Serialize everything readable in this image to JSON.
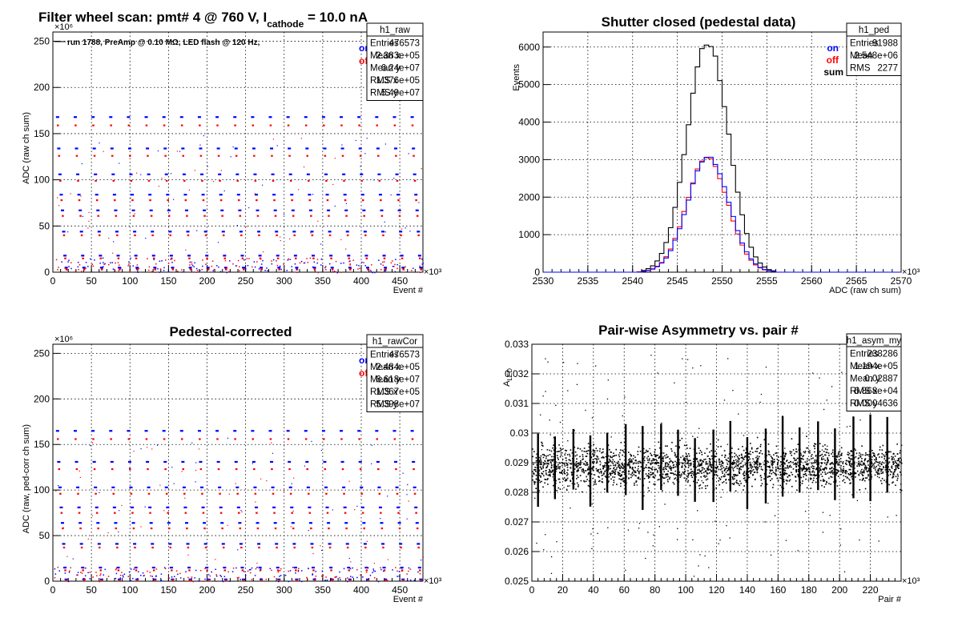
{
  "chart_data": [
    {
      "type": "scatter",
      "title_main": "Filter wheel scan: pmt#   4 @   760 V, I",
      "title_sub": "cathode",
      "title_tail": " = 10.0 nA",
      "xlabel": "Event #",
      "ylabel": "ADC (raw ch sum)",
      "x_multiplier": "×10³",
      "y_multiplier": "×10⁶",
      "xlim": [
        0,
        480
      ],
      "ylim": [
        0,
        260
      ],
      "x_ticks": [
        0,
        50,
        100,
        150,
        200,
        250,
        300,
        350,
        400,
        450
      ],
      "y_ticks": [
        0,
        50,
        100,
        150,
        200,
        250
      ],
      "note": "run 1788, PreAmp @ 0.10 MΩ, LED flash @  120 Hz,",
      "legend": [
        "on",
        "off"
      ],
      "colors": {
        "on": "#0000ff",
        "off": "#ff0000"
      },
      "stats_name": "h1_raw",
      "stats": [
        [
          "Entries",
          "476573"
        ],
        [
          "Mean x",
          "2.383e+05"
        ],
        [
          "Mean y",
          "6.24e+07"
        ],
        [
          "RMS x",
          "1.376e+05"
        ],
        [
          "RMS y",
          "5.49e+07"
        ]
      ],
      "level_pairs": [
        [
          168,
          159
        ],
        [
          134,
          126
        ],
        [
          106,
          99
        ],
        [
          84,
          78
        ],
        [
          67,
          61
        ],
        [
          44,
          40
        ],
        [
          18,
          15
        ],
        [
          5,
          3
        ]
      ],
      "step_period_k": 23
    },
    {
      "type": "histogram",
      "title": "Shutter closed (pedestal data)",
      "xlabel": "ADC (raw ch sum)",
      "ylabel": "Events",
      "x_multiplier": "×10³",
      "xlim": [
        2530,
        2570
      ],
      "ylim": [
        0,
        6400
      ],
      "x_ticks": [
        2530,
        2535,
        2540,
        2545,
        2550,
        2555,
        2560,
        2565,
        2570
      ],
      "y_ticks": [
        0,
        1000,
        2000,
        3000,
        4000,
        5000,
        6000
      ],
      "legend": [
        "on",
        "off",
        "sum"
      ],
      "colors": {
        "on": "#0000ff",
        "off": "#ff0000",
        "sum": "#000000"
      },
      "stats_name": "h1_ped",
      "stats": [
        [
          "Entries",
          "91988"
        ],
        [
          "Mean",
          "2.548e+06"
        ],
        [
          "RMS",
          "2277"
        ]
      ],
      "peak_mean": 2548.4,
      "peak_sigma": 2.3,
      "series_peaks": {
        "on": 3080,
        "off": 3040,
        "sum": 6120
      },
      "bin_width": 0.5
    },
    {
      "type": "scatter",
      "title": "Pedestal-corrected",
      "xlabel": "Event #",
      "ylabel": "ADC (raw, ped-corr ch sum)",
      "x_multiplier": "×10³",
      "y_multiplier": "×10⁶",
      "xlim": [
        0,
        480
      ],
      "ylim": [
        0,
        260
      ],
      "x_ticks": [
        0,
        50,
        100,
        150,
        200,
        250,
        300,
        350,
        400,
        450
      ],
      "y_ticks": [
        0,
        50,
        100,
        150,
        200,
        250
      ],
      "legend": [
        "on",
        "off"
      ],
      "colors": {
        "on": "#0000ff",
        "off": "#ff0000"
      },
      "stats_name": "h1_rawCor",
      "stats": [
        [
          "Entries",
          "476573"
        ],
        [
          "Mean x",
          "2.484e+05"
        ],
        [
          "Mean y",
          "6.618e+07"
        ],
        [
          "RMS x",
          "1.367e+05"
        ],
        [
          "RMS y",
          "5.398e+07"
        ]
      ],
      "level_pairs": [
        [
          165,
          156
        ],
        [
          131,
          123
        ],
        [
          103,
          96
        ],
        [
          81,
          75
        ],
        [
          64,
          58
        ],
        [
          41,
          37
        ],
        [
          15,
          12
        ],
        [
          2,
          1
        ]
      ],
      "step_period_k": 23
    },
    {
      "type": "scatter",
      "title": "Pair-wise Asymmetry vs. pair #",
      "xlabel": "Pair #",
      "ylabel_main": "A",
      "ylabel_sub": "LED",
      "x_multiplier": "×10³",
      "xlim": [
        0,
        240
      ],
      "ylim": [
        0.025,
        0.033
      ],
      "x_ticks": [
        0,
        20,
        40,
        60,
        80,
        100,
        120,
        140,
        160,
        180,
        200,
        220
      ],
      "y_ticks": [
        0.025,
        0.026,
        0.027,
        0.028,
        0.029,
        0.03,
        0.031,
        0.032,
        0.033
      ],
      "y_tick_labels": [
        "0.025",
        "0.026",
        "0.027",
        "0.028",
        "0.029",
        "0.03",
        "0.031",
        "0.032",
        "0.033"
      ],
      "stats_name": "h1_asym_my",
      "stats": [
        [
          "Entries",
          "238286"
        ],
        [
          "Mean x",
          "1.194e+05"
        ],
        [
          "Mean y",
          "0.02887"
        ],
        [
          "RMS x",
          "6.868e+04"
        ],
        [
          "RMS y",
          "0.0004636"
        ]
      ],
      "band_center": 0.0289,
      "band_halfwidth": 0.0006,
      "spike_pairs_k": [
        4,
        15,
        27,
        38,
        49,
        61,
        72,
        84,
        95,
        106,
        118,
        129,
        140,
        152,
        163,
        174,
        186,
        197,
        209,
        220,
        231
      ]
    }
  ]
}
